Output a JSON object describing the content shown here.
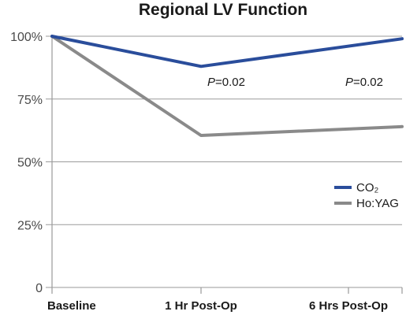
{
  "chart_data": {
    "type": "line",
    "title": "Regional LV Function",
    "categories": [
      "Baseline",
      "1 Hr Post-Op",
      "6 Hrs Post-Op"
    ],
    "ylim": [
      0,
      100
    ],
    "yticks": [
      {
        "value": 0,
        "label": "0"
      },
      {
        "value": 25,
        "label": "25%"
      },
      {
        "value": 50,
        "label": "50%"
      },
      {
        "value": 75,
        "label": "75%"
      },
      {
        "value": 100,
        "label": "100%"
      }
    ],
    "grid": true,
    "legend_position": "right",
    "series": [
      {
        "name": "CO₂",
        "color": "#2a4d9b",
        "values": [
          100,
          88,
          99
        ]
      },
      {
        "name": "Ho:YAG",
        "color": "#8a8a8a",
        "values": [
          100,
          60.5,
          64
        ]
      }
    ],
    "annotations": [
      {
        "category": "1 Hr Post-Op",
        "italic": "P",
        "text": "=0.02"
      },
      {
        "category": "6 Hrs Post-Op",
        "italic": "P",
        "text": "=0.02"
      }
    ]
  }
}
